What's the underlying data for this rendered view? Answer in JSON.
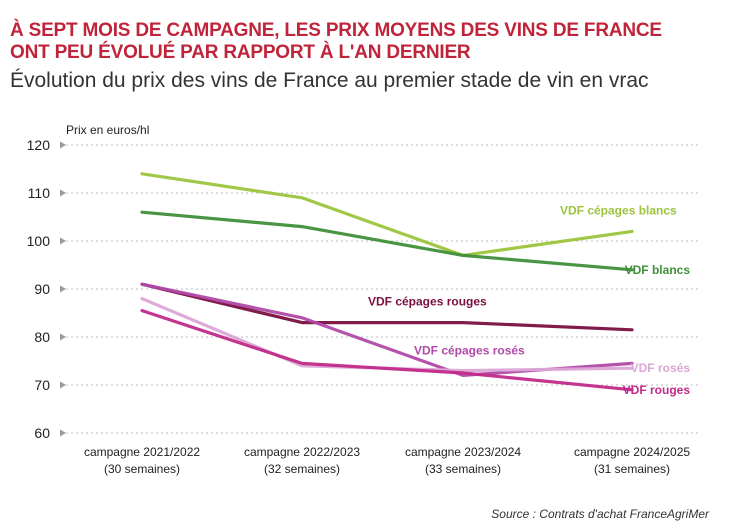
{
  "header": {
    "title": "À SEPT MOIS DE CAMPAGNE, LES PRIX MOYENS DES VINS DE FRANCE\nONT PEU ÉVOLUÉ PAR RAPPORT À L'AN DERNIER",
    "subtitle": "Évolution du prix des vins de France au premier stade de vin en vrac"
  },
  "source": "Source : Contrats d'achat FranceAgriMer",
  "chart_data": {
    "type": "line",
    "title": "Évolution du prix des vins de France au premier stade de vin en vrac",
    "ylabel": "Prix en euros/hl",
    "xlabel": "",
    "ylim": [
      60,
      120
    ],
    "yticks": [
      60,
      70,
      80,
      90,
      100,
      110,
      120
    ],
    "grid": true,
    "categories": [
      {
        "line1": "campagne 2021/2022",
        "line2": "(30 semaines)"
      },
      {
        "line1": "campagne 2022/2023",
        "line2": "(32 semaines)"
      },
      {
        "line1": "campagne 2023/2024",
        "line2": "(33 semaines)"
      },
      {
        "line1": "campagne 2024/2025",
        "line2": "(31 semaines)"
      }
    ],
    "series": [
      {
        "name": "VDF cépages blancs",
        "color": "#9cc43c",
        "values": [
          114,
          109,
          97,
          102
        ],
        "label_pos": "end-above"
      },
      {
        "name": "VDF  blancs",
        "color": "#3f8f3a",
        "values": [
          106,
          103,
          97,
          94
        ],
        "label_pos": "end-right"
      },
      {
        "name": "VDF cépages rouges",
        "color": "#7a1040",
        "values": [
          91,
          83,
          83,
          81.5
        ],
        "label_pos": "middle-above"
      },
      {
        "name": "VDF cépages rosés",
        "color": "#b04aa8",
        "values": [
          91,
          84,
          72,
          74.5
        ],
        "label_pos": "middle-below"
      },
      {
        "name": "VDF rosés",
        "color": "#dca6d6",
        "values": [
          88,
          74,
          73,
          73.5
        ],
        "label_pos": "end-right"
      },
      {
        "name": "VDF rouges",
        "color": "#c02a88",
        "values": [
          85.5,
          74.5,
          72.5,
          69
        ],
        "label_pos": "end-right"
      }
    ]
  }
}
